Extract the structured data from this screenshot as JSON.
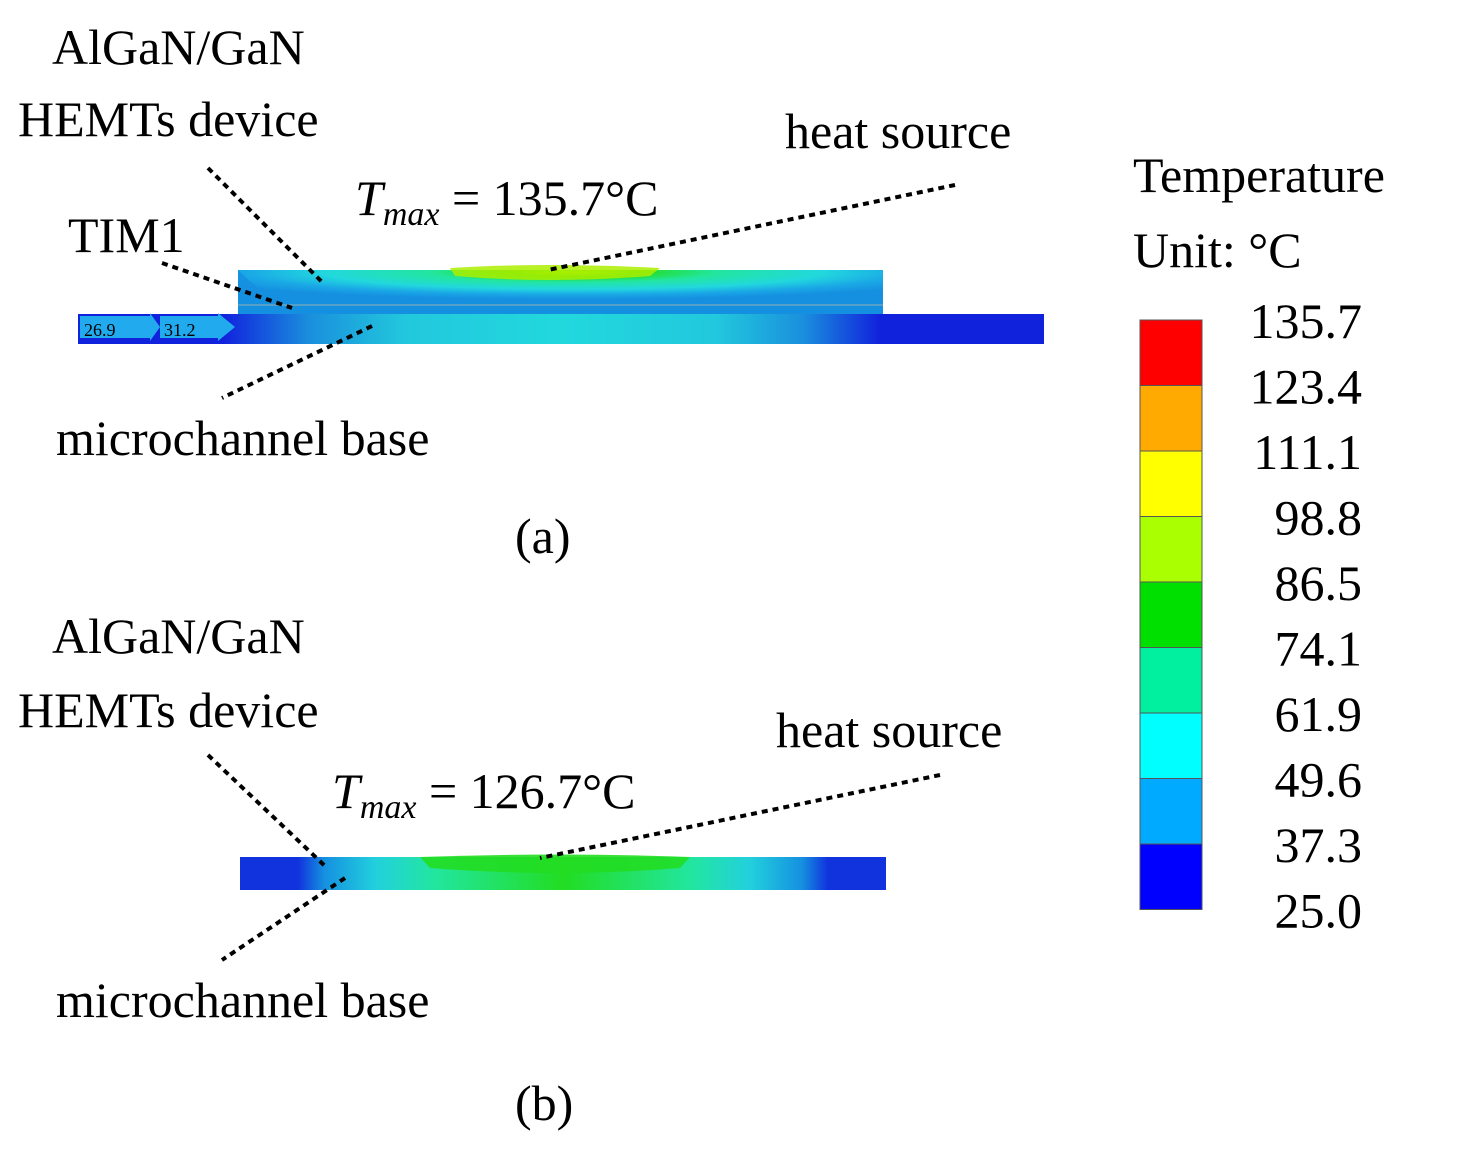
{
  "panel_a": {
    "device_label_line1": "AlGaN/GaN",
    "device_label_line2": "HEMTs device",
    "heat_source_label": "heat source",
    "tmax_symbol": "T",
    "tmax_subscript": "max",
    "tmax_value": " = 135.7°C",
    "tim_label": "TIM1",
    "base_label": "microchannel base",
    "inlet_arrow_1": "26.9",
    "inlet_arrow_2": "31.2",
    "caption": "(a)"
  },
  "panel_b": {
    "device_label_line1": "AlGaN/GaN",
    "device_label_line2": "HEMTs device",
    "heat_source_label": "heat source",
    "tmax_symbol": "T",
    "tmax_subscript": "max",
    "tmax_value": " = 126.7°C",
    "base_label": "microchannel base",
    "caption": "(b)"
  },
  "legend": {
    "title_line1": "Temperature",
    "title_line2": "Unit: °C",
    "ticks": [
      "135.7",
      "123.4",
      "111.1",
      "98.8",
      "86.5",
      "74.1",
      "61.9",
      "49.6",
      "37.3",
      "25.0"
    ],
    "colors": [
      "#ff0000",
      "#ffaa00",
      "#ffff00",
      "#aaff00",
      "#00e000",
      "#00f0a0",
      "#00ffff",
      "#00aaff",
      "#0000ff"
    ]
  }
}
